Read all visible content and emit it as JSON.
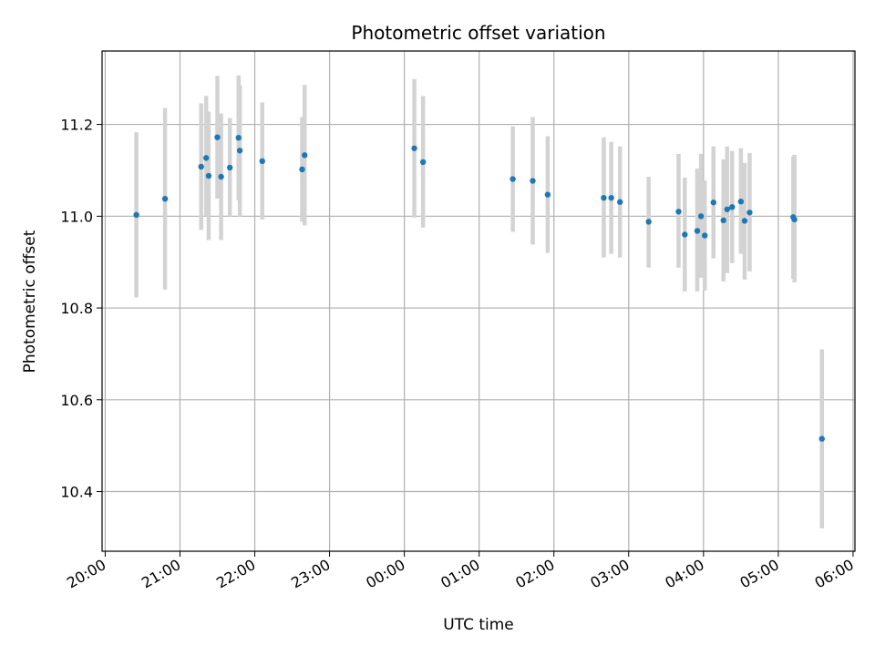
{
  "chart_data": {
    "type": "scatter",
    "title": "Photometric offset variation",
    "xlabel": "UTC time",
    "ylabel": "Photometric offset",
    "xlim": [
      "20:00",
      "06:00"
    ],
    "ylim": [
      10.27,
      11.36
    ],
    "x_ticks": [
      "20:00",
      "21:00",
      "22:00",
      "23:00",
      "00:00",
      "01:00",
      "02:00",
      "03:00",
      "04:00",
      "05:00",
      "06:00"
    ],
    "y_ticks": [
      "10.4",
      "10.6",
      "10.8",
      "11.0",
      "11.2"
    ],
    "grid": true,
    "point_color": "#1f77b4",
    "errorbar_color": "#d3d3d3",
    "series": [
      {
        "points": [
          {
            "t": "20:25",
            "y": 11.003,
            "lo": 10.823,
            "hi": 11.183
          },
          {
            "t": "20:48",
            "y": 11.038,
            "lo": 10.84,
            "hi": 11.236
          },
          {
            "t": "21:17",
            "y": 11.108,
            "lo": 10.97,
            "hi": 11.246
          },
          {
            "t": "21:21",
            "y": 11.127,
            "lo": 11.0,
            "hi": 11.262
          },
          {
            "t": "21:23",
            "y": 11.088,
            "lo": 10.948,
            "hi": 11.228
          },
          {
            "t": "21:30",
            "y": 11.172,
            "lo": 11.038,
            "hi": 11.306
          },
          {
            "t": "21:33",
            "y": 11.086,
            "lo": 10.948,
            "hi": 11.224
          },
          {
            "t": "21:40",
            "y": 11.106,
            "lo": 11.0,
            "hi": 11.214
          },
          {
            "t": "21:47",
            "y": 11.171,
            "lo": 11.035,
            "hi": 11.307
          },
          {
            "t": "21:48",
            "y": 11.143,
            "lo": 11.0,
            "hi": 11.286
          },
          {
            "t": "22:06",
            "y": 11.12,
            "lo": 10.993,
            "hi": 11.248
          },
          {
            "t": "22:38",
            "y": 11.102,
            "lo": 10.988,
            "hi": 11.216
          },
          {
            "t": "22:40",
            "y": 11.133,
            "lo": 10.98,
            "hi": 11.286
          },
          {
            "t": "00:08",
            "y": 11.148,
            "lo": 10.997,
            "hi": 11.299
          },
          {
            "t": "00:15",
            "y": 11.118,
            "lo": 10.975,
            "hi": 11.262
          },
          {
            "t": "01:27",
            "y": 11.081,
            "lo": 10.966,
            "hi": 11.196
          },
          {
            "t": "01:43",
            "y": 11.077,
            "lo": 10.938,
            "hi": 11.216
          },
          {
            "t": "01:55",
            "y": 11.047,
            "lo": 10.92,
            "hi": 11.174
          },
          {
            "t": "02:40",
            "y": 11.04,
            "lo": 10.91,
            "hi": 11.172
          },
          {
            "t": "02:46",
            "y": 11.04,
            "lo": 10.918,
            "hi": 11.162
          },
          {
            "t": "02:53",
            "y": 11.031,
            "lo": 10.91,
            "hi": 11.152
          },
          {
            "t": "03:16",
            "y": 10.988,
            "lo": 10.888,
            "hi": 11.086
          },
          {
            "t": "03:40",
            "y": 11.01,
            "lo": 10.888,
            "hi": 11.136
          },
          {
            "t": "03:45",
            "y": 10.96,
            "lo": 10.836,
            "hi": 11.084
          },
          {
            "t": "03:55",
            "y": 10.968,
            "lo": 10.836,
            "hi": 11.104
          },
          {
            "t": "03:58",
            "y": 11.0,
            "lo": 10.866,
            "hi": 11.136
          },
          {
            "t": "04:01",
            "y": 10.958,
            "lo": 10.838,
            "hi": 11.078
          },
          {
            "t": "04:08",
            "y": 11.03,
            "lo": 10.908,
            "hi": 11.152
          },
          {
            "t": "04:16",
            "y": 10.991,
            "lo": 10.858,
            "hi": 11.124
          },
          {
            "t": "04:19",
            "y": 11.015,
            "lo": 10.876,
            "hi": 11.152
          },
          {
            "t": "04:23",
            "y": 11.02,
            "lo": 10.898,
            "hi": 11.142
          },
          {
            "t": "04:30",
            "y": 11.032,
            "lo": 10.918,
            "hi": 11.148
          },
          {
            "t": "04:33",
            "y": 10.99,
            "lo": 10.862,
            "hi": 11.116
          },
          {
            "t": "04:37",
            "y": 11.008,
            "lo": 10.88,
            "hi": 11.138
          },
          {
            "t": "05:12",
            "y": 10.998,
            "lo": 10.864,
            "hi": 11.13
          },
          {
            "t": "05:13",
            "y": 10.993,
            "lo": 10.856,
            "hi": 11.134
          },
          {
            "t": "05:35",
            "y": 10.515,
            "lo": 10.32,
            "hi": 10.71
          }
        ]
      }
    ]
  }
}
